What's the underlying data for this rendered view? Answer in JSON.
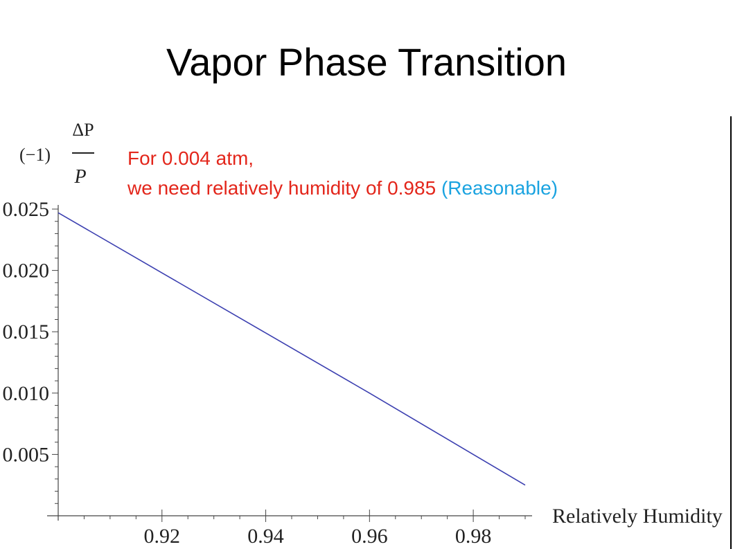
{
  "slide": {
    "title": "Vapor Phase Transition",
    "annotation": {
      "line1": "For 0.004 atm,",
      "line2_main": "we need relatively humidity of 0.985",
      "line2_note": "(Reasonable)",
      "main_color": "#e3261b",
      "note_color": "#1aa3e0"
    }
  },
  "chart_data": {
    "type": "line",
    "title": "",
    "xlabel": "Relatively Humidity",
    "ylabel": "(−1) ΔP / P",
    "ylabel_parts": {
      "prefix": "(−1)",
      "numerator": "ΔP",
      "denominator": "P"
    },
    "xlim": [
      0.9,
      0.995
    ],
    "ylim": [
      0.0,
      0.025
    ],
    "xticks": [
      0.92,
      0.94,
      0.96,
      0.98
    ],
    "xtick_labels": [
      "0.92",
      "0.94",
      "0.96",
      "0.98"
    ],
    "yticks": [
      0.005,
      0.01,
      0.015,
      0.02,
      0.025
    ],
    "ytick_labels": [
      "0.005",
      "0.010",
      "0.015",
      "0.020",
      "0.025"
    ],
    "grid": false,
    "series": [
      {
        "color": "#3b3fb0",
        "x": [
          0.9,
          0.92,
          0.94,
          0.96,
          0.98,
          0.99
        ],
        "y": [
          0.0247,
          0.0198,
          0.0149,
          0.01,
          0.005,
          0.0025
        ]
      }
    ]
  }
}
